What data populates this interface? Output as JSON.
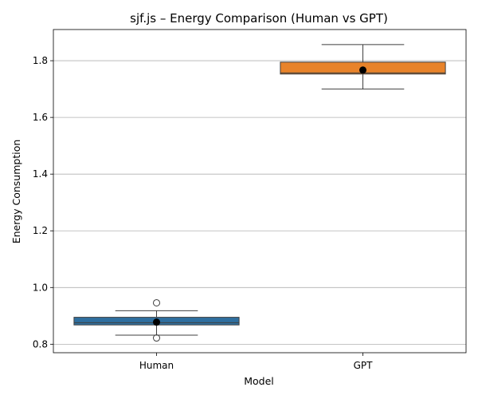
{
  "chart_data": {
    "type": "box",
    "title": "sjf.js – Energy Comparison (Human vs GPT)",
    "xlabel": "Model",
    "ylabel": "Energy Consumption",
    "categories": [
      "Human",
      "GPT"
    ],
    "ylim": [
      0.77,
      1.91
    ],
    "yticks": [
      0.8,
      1.0,
      1.2,
      1.4,
      1.6,
      1.8
    ],
    "ytick_labels": [
      "0.8",
      "1.0",
      "1.2",
      "1.4",
      "1.6",
      "1.8"
    ],
    "grid": "y",
    "boxes": [
      {
        "name": "Human",
        "color": "#2f6f9f",
        "whisker_low": 0.832,
        "q1": 0.868,
        "median": 0.876,
        "q3": 0.895,
        "whisker_high": 0.918,
        "mean": 0.878,
        "outliers": [
          0.946,
          0.822
        ]
      },
      {
        "name": "GPT",
        "color": "#e8832a",
        "whisker_low": 1.7,
        "q1": 1.753,
        "median": 1.757,
        "q3": 1.795,
        "whisker_high": 1.857,
        "mean": 1.767,
        "outliers": []
      }
    ]
  }
}
